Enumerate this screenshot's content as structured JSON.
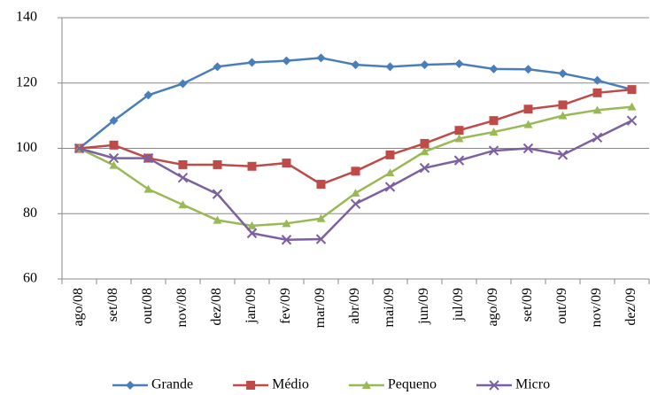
{
  "chart_data": {
    "type": "line",
    "categories": [
      "ago/08",
      "set/08",
      "out/08",
      "nov/08",
      "dez/08",
      "jan/09",
      "fev/09",
      "mar/09",
      "abr/09",
      "mai/09",
      "jun/09",
      "jul/09",
      "ago/09",
      "set/09",
      "out/09",
      "nov/09",
      "dez/09"
    ],
    "series": [
      {
        "name": "Grande",
        "color": "#4a7ebb",
        "marker": "diamond",
        "values": [
          100,
          108.5,
          116.3,
          119.8,
          125,
          126.3,
          126.8,
          127.7,
          125.6,
          125,
          125.6,
          125.9,
          124.3,
          124.2,
          122.9,
          120.8,
          118
        ]
      },
      {
        "name": "Médio",
        "color": "#be4b48",
        "marker": "square",
        "values": [
          100,
          101,
          97,
          95,
          95,
          94.5,
          95.5,
          89,
          93,
          98,
          101.5,
          105.5,
          108.5,
          112,
          113.3,
          117,
          118
        ]
      },
      {
        "name": "Pequeno",
        "color": "#98b954",
        "marker": "triangle",
        "values": [
          100,
          94.8,
          87.5,
          82.7,
          78,
          76.3,
          77,
          78.5,
          86.3,
          92.5,
          99,
          103,
          105,
          107.3,
          110,
          111.7,
          112.7
        ]
      },
      {
        "name": "Micro",
        "color": "#7d60a0",
        "marker": "x",
        "values": [
          100,
          97,
          97,
          91,
          86,
          74,
          72,
          72.2,
          83,
          88.2,
          94,
          96.3,
          99.3,
          100,
          98,
          103.3,
          108.5
        ]
      }
    ],
    "ylim": [
      60,
      140
    ],
    "yticks": [
      60,
      80,
      100,
      120,
      140
    ],
    "grid": true,
    "legend": "bottom"
  }
}
